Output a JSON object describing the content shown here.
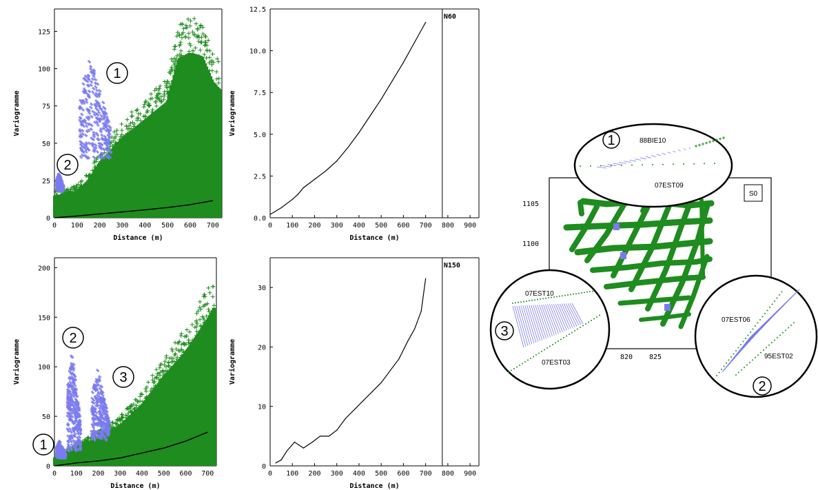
{
  "chart_data": [
    {
      "type": "scatter",
      "xlabel": "Distance (m)",
      "ylabel": "Variogramme",
      "xlim": [
        0,
        740
      ],
      "ylim": [
        0,
        140
      ],
      "x_ticks": [
        0,
        100,
        200,
        300,
        400,
        500,
        600,
        700
      ],
      "y_ticks": [
        0,
        25,
        50,
        75,
        100,
        125
      ],
      "series": [
        {
          "color": "#1e8c1e",
          "marker": "+",
          "envelope": {
            "x": [
              0,
              100,
              150,
              200,
              300,
              400,
              500,
              550,
              600,
              650,
              700,
              730
            ],
            "y": [
              18,
              22,
              30,
              45,
              65,
              80,
              95,
              130,
              135,
              132,
              110,
              105
            ]
          }
        },
        {
          "color": "#7b7bf0",
          "marker": "*",
          "clusters": [
            {
              "label": "1",
              "x": [
                10,
                40
              ],
              "y": [
                18,
                30
              ]
            },
            {
              "label": "2",
              "x": [
                110,
                250
              ],
              "y": [
                40,
                108
              ]
            }
          ]
        },
        {
          "color": "#000000",
          "style": "line",
          "x": [
            0,
            100,
            200,
            300,
            400,
            500,
            600,
            700
          ],
          "y": [
            0,
            1.2,
            2.6,
            3.9,
            5.3,
            6.9,
            8.8,
            11.5
          ]
        }
      ],
      "annotations": [
        "1",
        "2"
      ]
    },
    {
      "type": "line",
      "xlabel": "Distance (m)",
      "ylabel": "Variogramme",
      "xlim": [
        0,
        940
      ],
      "ylim": [
        0,
        12.5
      ],
      "x_ticks": [
        0,
        100,
        200,
        300,
        400,
        500,
        600,
        700,
        800,
        900
      ],
      "y_ticks": [
        0.0,
        2.5,
        5.0,
        7.5,
        10.0,
        12.5
      ],
      "x": [
        0,
        50,
        100,
        125,
        150,
        200,
        250,
        300,
        350,
        400,
        450,
        500,
        550,
        600,
        650,
        700
      ],
      "y": [
        0.2,
        0.6,
        1.1,
        1.4,
        1.8,
        2.3,
        2.8,
        3.4,
        4.2,
        5.1,
        6.1,
        7.1,
        8.2,
        9.3,
        10.5,
        11.7
      ],
      "vline": 775,
      "label": "N60"
    },
    {
      "type": "scatter",
      "xlabel": "Distance (m)",
      "ylabel": "Variogramme",
      "xlim": [
        0,
        740
      ],
      "ylim": [
        0,
        210
      ],
      "x_ticks": [
        0,
        100,
        200,
        300,
        400,
        500,
        600,
        700
      ],
      "y_ticks": [
        0,
        50,
        100,
        150,
        200
      ],
      "series": [
        {
          "color": "#1e8c1e",
          "marker": "+",
          "envelope": {
            "x": [
              0,
              100,
              200,
              300,
              400,
              500,
              600,
              700,
              730
            ],
            "y": [
              10,
              22,
              35,
              50,
              75,
              110,
              140,
              180,
              195
            ]
          }
        },
        {
          "color": "#7b7bf0",
          "marker": "*",
          "clusters": [
            {
              "label": "1",
              "x": [
                10,
                50
              ],
              "y": [
                8,
                25
              ]
            },
            {
              "label": "2",
              "x": [
                60,
                120
              ],
              "y": [
                15,
                118
              ]
            },
            {
              "label": "3",
              "x": [
                170,
                250
              ],
              "y": [
                25,
                100
              ]
            }
          ]
        },
        {
          "color": "#000000",
          "style": "line",
          "x": [
            0,
            100,
            200,
            300,
            400,
            500,
            600,
            700
          ],
          "y": [
            0,
            3,
            5,
            8,
            13,
            18,
            25,
            34
          ]
        }
      ],
      "annotations": [
        "1",
        "2",
        "3"
      ]
    },
    {
      "type": "line",
      "xlabel": "Distance (m)",
      "ylabel": "Variogramme",
      "xlim": [
        0,
        940
      ],
      "ylim": [
        0,
        35
      ],
      "x_ticks": [
        0,
        100,
        200,
        300,
        400,
        500,
        600,
        700,
        800,
        900
      ],
      "y_ticks": [
        0,
        10,
        20,
        30
      ],
      "x": [
        25,
        50,
        75,
        110,
        150,
        190,
        225,
        265,
        300,
        340,
        380,
        420,
        460,
        500,
        540,
        580,
        620,
        650,
        680,
        700
      ],
      "y": [
        0.5,
        1,
        2.5,
        4,
        3,
        4,
        5,
        5,
        6,
        8,
        9.5,
        11,
        12.5,
        14,
        16,
        18,
        21,
        23,
        26,
        31.5
      ],
      "vline": 775,
      "label": "N150"
    }
  ],
  "map": {
    "label": "S0",
    "x_ticks": [
      "820",
      "825"
    ],
    "y_ticks": [
      "1105",
      "1100"
    ],
    "callouts": [
      {
        "number": "1",
        "labels": [
          "88BIE10",
          "07EST09"
        ]
      },
      {
        "number": "3",
        "labels": [
          "07EST10",
          "07EST03"
        ]
      },
      {
        "number": "2",
        "labels": [
          "07EST06",
          "95EST02"
        ]
      }
    ],
    "colors": {
      "drillholes": "#1e8c1e",
      "highlight": "#7b7bf0"
    }
  }
}
